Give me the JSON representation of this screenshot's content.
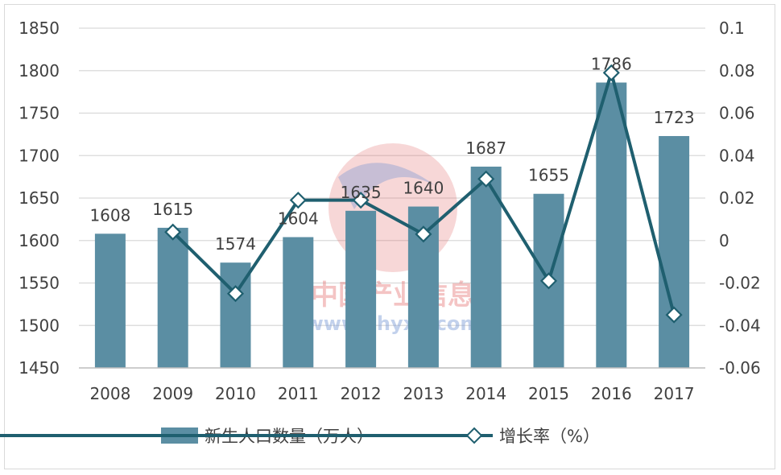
{
  "chart_data": {
    "type": "bar",
    "categories": [
      "2008",
      "2009",
      "2010",
      "2011",
      "2012",
      "2013",
      "2014",
      "2015",
      "2016",
      "2017"
    ],
    "series": [
      {
        "name": "新生人口数量（万人）",
        "type": "bar",
        "axis": "left",
        "values": [
          1608,
          1615,
          1574,
          1604,
          1635,
          1640,
          1687,
          1655,
          1786,
          1723
        ],
        "color": "#5b8ea3"
      },
      {
        "name": "增长率（%）",
        "type": "line",
        "axis": "right",
        "values": [
          null,
          0.004,
          -0.025,
          0.019,
          0.019,
          0.003,
          0.029,
          -0.019,
          0.079,
          -0.035
        ],
        "color": "#1f5f6f",
        "marker": "diamond"
      }
    ],
    "y_left": {
      "min": 1450,
      "max": 1850,
      "ticks": [
        "1450",
        "1500",
        "1550",
        "1600",
        "1650",
        "1700",
        "1750",
        "1800",
        "1850"
      ]
    },
    "y_right": {
      "min": -0.06,
      "max": 0.1,
      "ticks": [
        "-0.06",
        "-0.04",
        "-0.02",
        "0",
        "0.02",
        "0.04",
        "0.06",
        "0.08",
        "0.1"
      ]
    },
    "data_labels": [
      "1608",
      "1615",
      "1574",
      "1604",
      "1635",
      "1640",
      "1687",
      "1655",
      "1786",
      "1723"
    ],
    "grid": true,
    "legend_position": "bottom",
    "watermark": {
      "text": "中国产业信息",
      "url": "www.chyxx.com"
    }
  }
}
